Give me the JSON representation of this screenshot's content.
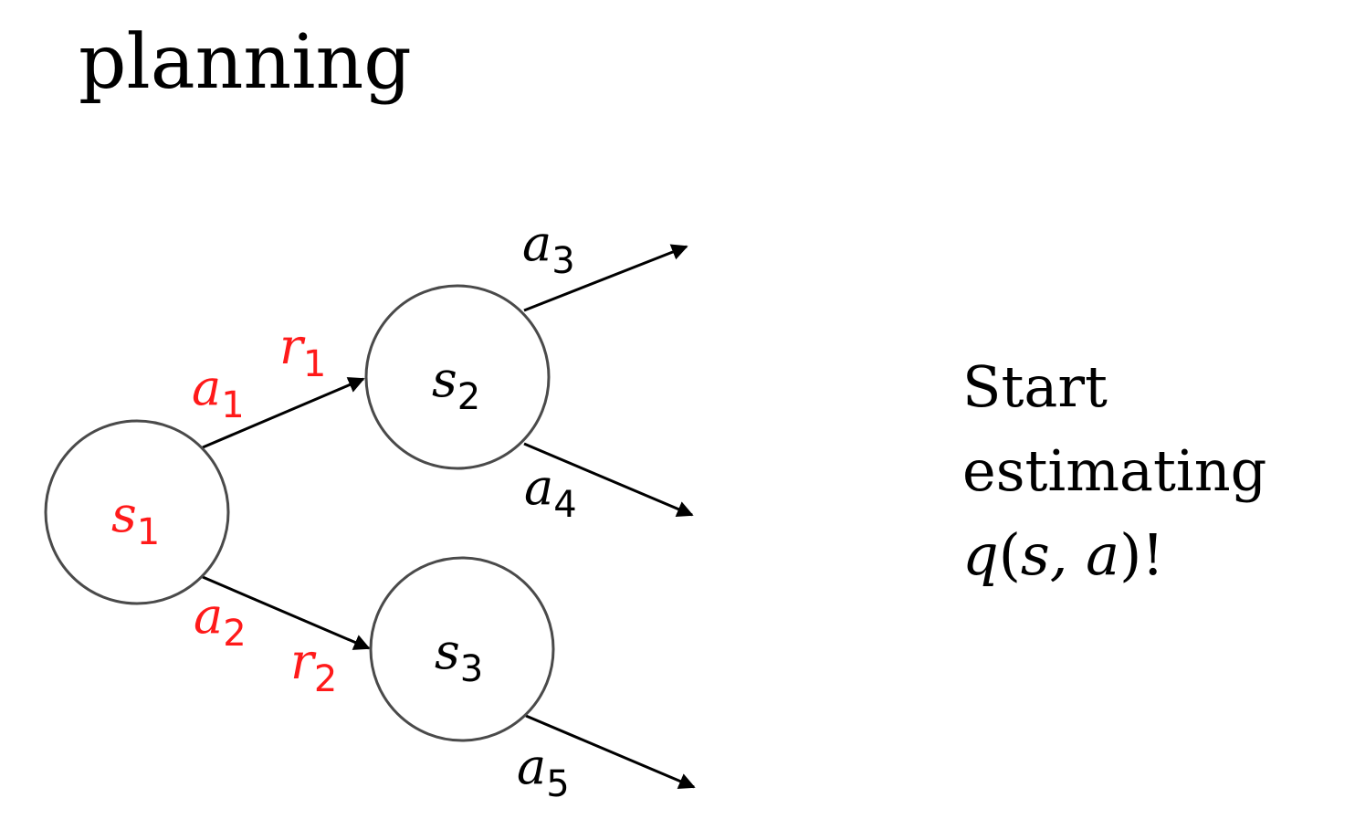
{
  "title": "planning",
  "colors": {
    "highlight": "#ff1a1a",
    "text": "#000000",
    "node_stroke": "#4a4a4a"
  },
  "nodes": {
    "s1": {
      "sym": "s",
      "sub": "1",
      "highlighted": true
    },
    "s2": {
      "sym": "s",
      "sub": "2",
      "highlighted": false
    },
    "s3": {
      "sym": "s",
      "sub": "3",
      "highlighted": false
    }
  },
  "edge_labels": {
    "a1": {
      "sym": "a",
      "sub": "1"
    },
    "a2": {
      "sym": "a",
      "sub": "2"
    },
    "a3": {
      "sym": "a",
      "sub": "3"
    },
    "a4": {
      "sym": "a",
      "sub": "4"
    },
    "a5": {
      "sym": "a",
      "sub": "5"
    },
    "r1": {
      "sym": "r",
      "sub": "1"
    },
    "r2": {
      "sym": "r",
      "sub": "2"
    }
  },
  "side_text": {
    "line1": "Start",
    "line2": "estimating",
    "q": "q",
    "open": "(",
    "args": "s, a",
    "close": ")!"
  }
}
